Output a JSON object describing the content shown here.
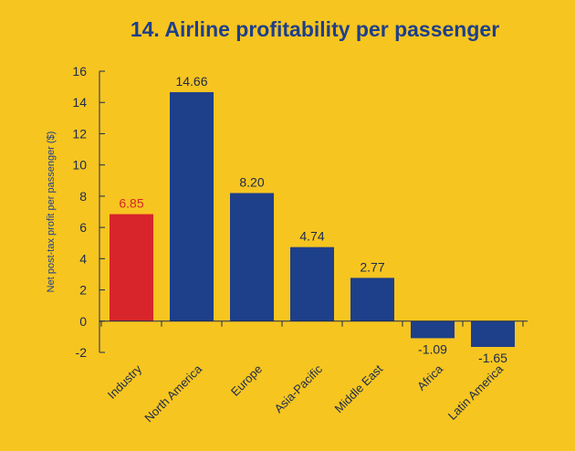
{
  "chart_data": {
    "type": "bar",
    "title": "14. Airline profitability per passenger",
    "ylabel": "Net post-tax profit per passenger ($)",
    "xlabel": "",
    "categories": [
      "Industry",
      "North America",
      "Europe",
      "Asia-Pacific",
      "Middle East",
      "Africa",
      "Latin America"
    ],
    "values": [
      6.85,
      14.66,
      8.2,
      4.74,
      2.77,
      -1.09,
      -1.65
    ],
    "value_labels": [
      "6.85",
      "14.66",
      "8.20",
      "4.74",
      "2.77",
      "-1.09",
      "-1.65"
    ],
    "ylim": [
      -2,
      16
    ],
    "yticks": [
      "-2",
      "0",
      "2",
      "4",
      "6",
      "8",
      "10",
      "12",
      "14",
      "16"
    ],
    "grid": false,
    "colors": {
      "highlight": "#d7252b",
      "bar": "#1e3f8a",
      "highlight_label": "#d7252b",
      "label": "#1b2a4a",
      "background": "#f7c520"
    },
    "highlight_index": 0
  }
}
